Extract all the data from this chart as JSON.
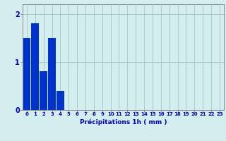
{
  "values": [
    1.5,
    1.8,
    0.8,
    1.5,
    0.4,
    0,
    0,
    0,
    0,
    0,
    0,
    0,
    0,
    0,
    0,
    0,
    0,
    0,
    0,
    0,
    0,
    0,
    0,
    0
  ],
  "bar_color": "#0033cc",
  "background_color": "#d4eef0",
  "grid_color": "#aac8cc",
  "xlabel": "Précipitations 1h ( mm )",
  "xlabel_color": "#0000bb",
  "tick_color": "#0000bb",
  "axis_color": "#888888",
  "ylim": [
    0,
    2.2
  ],
  "yticks": [
    0,
    1,
    2
  ],
  "xlim": [
    -0.5,
    23.5
  ],
  "xticks": [
    0,
    1,
    2,
    3,
    4,
    5,
    6,
    7,
    8,
    9,
    10,
    11,
    12,
    13,
    14,
    15,
    16,
    17,
    18,
    19,
    20,
    21,
    22,
    23
  ],
  "figsize": [
    3.2,
    2.0
  ],
  "dpi": 100
}
